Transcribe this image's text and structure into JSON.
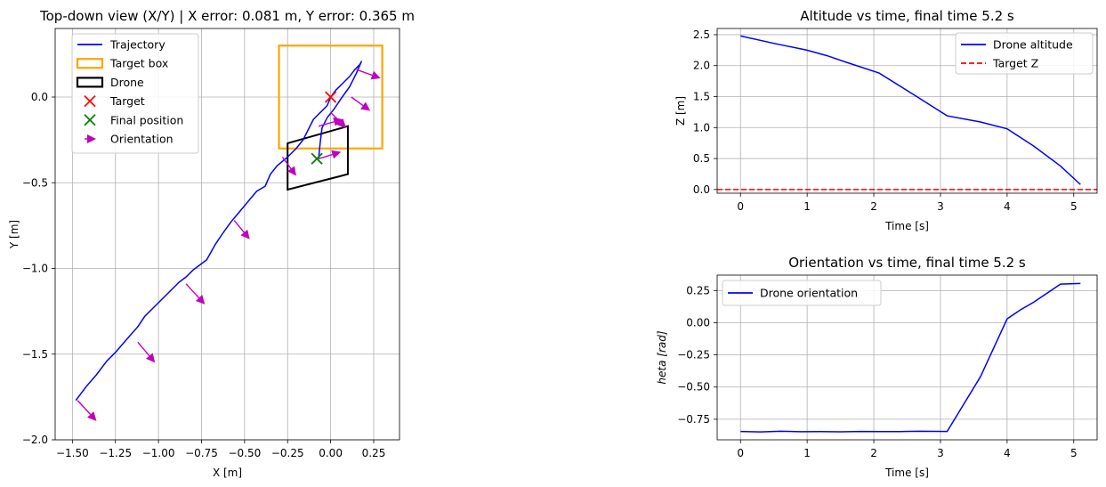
{
  "chart_data": [
    {
      "id": "topdown",
      "type": "line",
      "title": "Top-down view (X/Y) | X error: 0.081 m, Y error: 0.365 m",
      "xlabel": "X [m]",
      "ylabel": "Y [m]",
      "xlim": [
        -1.6,
        0.4
      ],
      "ylim": [
        -2.0,
        0.4
      ],
      "xticks": [
        -1.5,
        -1.25,
        -1.0,
        -0.75,
        -0.5,
        -0.25,
        0.0,
        0.25
      ],
      "xtick_labels": [
        "−1.50",
        "−1.25",
        "−1.00",
        "−0.75",
        "−0.50",
        "−0.25",
        "0.00",
        "0.25"
      ],
      "yticks": [
        -2.0,
        -1.5,
        -1.0,
        -0.5,
        0.0
      ],
      "ytick_labels": [
        "−2.0",
        "−1.5",
        "−1.0",
        "−0.5",
        "0.0"
      ],
      "grid": true,
      "legend_position": "upper-left",
      "legend": [
        {
          "label": "Trajectory",
          "kind": "line",
          "color": "#0000ff"
        },
        {
          "label": "Target box",
          "kind": "box",
          "color": "#ffa500"
        },
        {
          "label": "Drone",
          "kind": "box",
          "color": "#000000"
        },
        {
          "label": "Target",
          "kind": "x",
          "color": "#ff0000"
        },
        {
          "label": "Final position",
          "kind": "x",
          "color": "#008000"
        },
        {
          "label": "Orientation",
          "kind": "arrow",
          "color": "#bf00bf"
        }
      ],
      "trajectory": {
        "color": "#0000ff",
        "x": [
          -1.48,
          -1.42,
          -1.36,
          -1.3,
          -1.25,
          -1.19,
          -1.12,
          -1.08,
          -1.03,
          -0.98,
          -0.93,
          -0.88,
          -0.84,
          -0.8,
          -0.76,
          -0.72,
          -0.67,
          -0.63,
          -0.58,
          -0.53,
          -0.48,
          -0.43,
          -0.38,
          -0.35,
          -0.31,
          -0.25,
          -0.2,
          -0.16,
          -0.13,
          -0.1,
          -0.06,
          -0.02,
          0.0,
          0.03,
          0.07,
          0.11,
          0.14,
          0.17,
          0.18,
          0.15,
          0.11,
          0.06,
          0.02,
          -0.02,
          -0.05,
          -0.06,
          -0.07
        ],
        "y": [
          -1.77,
          -1.69,
          -1.62,
          -1.54,
          -1.49,
          -1.42,
          -1.34,
          -1.28,
          -1.23,
          -1.18,
          -1.13,
          -1.08,
          -1.05,
          -1.01,
          -0.98,
          -0.95,
          -0.86,
          -0.8,
          -0.73,
          -0.67,
          -0.61,
          -0.55,
          -0.52,
          -0.45,
          -0.4,
          -0.35,
          -0.3,
          -0.25,
          -0.19,
          -0.13,
          -0.09,
          -0.05,
          0.0,
          0.04,
          0.08,
          0.12,
          0.16,
          0.19,
          0.21,
          0.14,
          0.06,
          -0.01,
          -0.07,
          -0.12,
          -0.18,
          -0.26,
          -0.36
        ]
      },
      "target_box": {
        "color": "#ffa500",
        "x": [
          -0.3,
          0.3
        ],
        "y": [
          -0.3,
          0.3
        ]
      },
      "drone_box": {
        "color": "#000000",
        "x": [
          -0.25,
          0.1,
          0.1,
          -0.25
        ],
        "y": [
          -0.27,
          -0.17,
          -0.45,
          -0.54
        ]
      },
      "target": {
        "x": 0.0,
        "y": 0.0,
        "color": "#ff0000"
      },
      "final_position": {
        "x": -0.08,
        "y": -0.36,
        "color": "#008000"
      },
      "orientation_arrows": {
        "color": "#bf00bf",
        "x": [
          -1.47,
          -1.12,
          -0.84,
          -0.56,
          -0.28,
          0.0,
          -0.07,
          -0.07,
          0.12,
          0.15
        ],
        "y": [
          -1.77,
          -1.43,
          -1.09,
          -0.72,
          -0.35,
          -0.09,
          -0.17,
          -0.36,
          0.0,
          0.16
        ],
        "dx": [
          0.11,
          0.1,
          0.11,
          0.09,
          0.08,
          0.09,
          0.14,
          0.13,
          0.11,
          0.14
        ],
        "dy": [
          -0.12,
          -0.12,
          -0.12,
          -0.11,
          -0.11,
          -0.09,
          0.04,
          0.04,
          -0.08,
          -0.05
        ]
      }
    },
    {
      "id": "altitude",
      "type": "line",
      "title": "Altitude vs time, final time 5.2 s",
      "xlabel": "Time [s]",
      "ylabel": "Z [m]",
      "xlim": [
        -0.35,
        5.35
      ],
      "ylim": [
        -0.06,
        2.6
      ],
      "xticks": [
        0,
        1,
        2,
        3,
        4,
        5
      ],
      "xtick_labels": [
        "0",
        "1",
        "2",
        "3",
        "4",
        "5"
      ],
      "yticks": [
        0.0,
        0.5,
        1.0,
        1.5,
        2.0,
        2.5
      ],
      "ytick_labels": [
        "0.0",
        "0.5",
        "1.0",
        "1.5",
        "2.0",
        "2.5"
      ],
      "grid": true,
      "legend_position": "upper-right",
      "series": [
        {
          "name": "Drone altitude",
          "color": "#0000ff",
          "style": "solid",
          "x": [
            0.0,
            0.5,
            1.0,
            1.3,
            1.6,
            2.08,
            2.6,
            3.1,
            3.6,
            4.0,
            4.4,
            4.8,
            5.1
          ],
          "y": [
            2.48,
            2.36,
            2.25,
            2.16,
            2.05,
            1.88,
            1.53,
            1.19,
            1.09,
            0.98,
            0.7,
            0.38,
            0.08
          ]
        },
        {
          "name": "Target Z",
          "color": "#ff0000",
          "style": "dashed",
          "x": [
            -0.35,
            5.35
          ],
          "y": [
            0.0,
            0.0
          ]
        }
      ]
    },
    {
      "id": "orientation",
      "type": "line",
      "title": "Orientation vs time, final time 5.2 s",
      "xlabel": "Time [s]",
      "ylabel": "$heta$ [rad]",
      "ylabel_rendered": "heta [rad]",
      "xlim": [
        -0.35,
        5.35
      ],
      "ylim": [
        -0.91,
        0.37
      ],
      "xticks": [
        0,
        1,
        2,
        3,
        4,
        5
      ],
      "xtick_labels": [
        "0",
        "1",
        "2",
        "3",
        "4",
        "5"
      ],
      "yticks": [
        -0.75,
        -0.5,
        -0.25,
        0.0,
        0.25
      ],
      "ytick_labels": [
        "−0.75",
        "−0.50",
        "−0.25",
        "0.00",
        "0.25"
      ],
      "grid": true,
      "legend_position": "upper-left",
      "series": [
        {
          "name": "Drone orientation",
          "color": "#0000ff",
          "style": "solid",
          "x": [
            0.0,
            0.3,
            0.6,
            0.9,
            1.2,
            1.5,
            1.8,
            2.1,
            2.4,
            2.7,
            3.1,
            3.6,
            4.0,
            4.2,
            4.4,
            4.6,
            4.8,
            5.1
          ],
          "y": [
            -0.845,
            -0.849,
            -0.843,
            -0.847,
            -0.846,
            -0.848,
            -0.845,
            -0.846,
            -0.846,
            -0.843,
            -0.845,
            -0.42,
            0.03,
            0.1,
            0.16,
            0.23,
            0.3,
            0.305
          ]
        }
      ]
    }
  ]
}
